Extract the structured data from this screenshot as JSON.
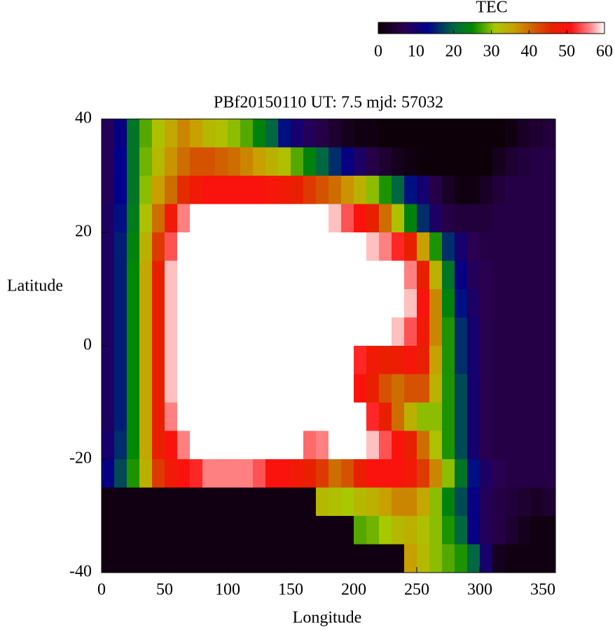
{
  "chart_data": {
    "type": "heatmap",
    "title": "PBf20150110  UT: 7.5  mjd: 57032",
    "xlabel": "Longitude",
    "ylabel": "Latitude",
    "colorbar_label": "TEC",
    "xlim": [
      0,
      360
    ],
    "ylim": [
      -40,
      40
    ],
    "xticks": [
      0,
      50,
      100,
      150,
      200,
      250,
      300,
      350
    ],
    "yticks": [
      -40,
      -20,
      0,
      20,
      40
    ],
    "clim": [
      0,
      60
    ],
    "cticks": [
      0,
      10,
      20,
      30,
      40,
      50,
      60
    ],
    "colormap": [
      {
        "value": 0,
        "color": "#0d0008"
      },
      {
        "value": 7,
        "color": "#2a0050"
      },
      {
        "value": 13,
        "color": "#00008c"
      },
      {
        "value": 20,
        "color": "#006840"
      },
      {
        "value": 25,
        "color": "#008800"
      },
      {
        "value": 31,
        "color": "#a8c800"
      },
      {
        "value": 36,
        "color": "#c8a000"
      },
      {
        "value": 41,
        "color": "#d06000"
      },
      {
        "value": 46,
        "color": "#e82000"
      },
      {
        "value": 51,
        "color": "#ff1010"
      },
      {
        "value": 56,
        "color": "#ff8080"
      },
      {
        "value": 60,
        "color": "#ffffff"
      }
    ],
    "x": [
      5,
      15,
      25,
      35,
      45,
      55,
      65,
      75,
      85,
      95,
      105,
      115,
      125,
      135,
      145,
      155,
      165,
      175,
      185,
      195,
      205,
      215,
      225,
      235,
      245,
      255,
      265,
      275,
      285,
      295,
      305,
      315,
      325,
      335,
      345,
      355
    ],
    "y": [
      37.5,
      32.5,
      27.5,
      22.5,
      17.5,
      12.5,
      7.5,
      2.5,
      -2.5,
      -7.5,
      -12.5,
      -17.5,
      -22.5,
      -27.5,
      -32.5,
      -37.5
    ],
    "z": [
      [
        8,
        12,
        22,
        28,
        32,
        35,
        38,
        36,
        33,
        32,
        30,
        28,
        24,
        20,
        14,
        10,
        8,
        6,
        4,
        2,
        1,
        1,
        0,
        0,
        0,
        0,
        0,
        0,
        0,
        0,
        0,
        0,
        1,
        3,
        4,
        5
      ],
      [
        8,
        13,
        22,
        29,
        33,
        37,
        40,
        42,
        42,
        41,
        40,
        38,
        36,
        34,
        32,
        28,
        24,
        20,
        16,
        12,
        9,
        6,
        4,
        2,
        1,
        0,
        0,
        0,
        0,
        0,
        0,
        2,
        4,
        5,
        6,
        6
      ],
      [
        8,
        13,
        22,
        30,
        36,
        40,
        45,
        48,
        50,
        50,
        50,
        50,
        50,
        49,
        48,
        46,
        44,
        42,
        40,
        37,
        34,
        30,
        26,
        20,
        14,
        10,
        6,
        3,
        1,
        1,
        3,
        5,
        6,
        6,
        6,
        6
      ],
      [
        9,
        14,
        23,
        32,
        40,
        48,
        56,
        60,
        60,
        60,
        60,
        60,
        60,
        60,
        60,
        60,
        60,
        60,
        58,
        54,
        50,
        46,
        40,
        32,
        24,
        16,
        9,
        6,
        5,
        5,
        5,
        6,
        6,
        6,
        6,
        6
      ],
      [
        9,
        15,
        24,
        34,
        44,
        54,
        60,
        60,
        60,
        60,
        60,
        60,
        60,
        60,
        60,
        60,
        60,
        60,
        60,
        60,
        60,
        58,
        56,
        52,
        46,
        36,
        26,
        16,
        10,
        7,
        6,
        6,
        6,
        6,
        6,
        6
      ],
      [
        9,
        15,
        25,
        35,
        46,
        58,
        60,
        60,
        60,
        60,
        60,
        60,
        60,
        60,
        60,
        60,
        60,
        60,
        60,
        60,
        60,
        60,
        60,
        60,
        56,
        46,
        34,
        22,
        12,
        8,
        7,
        6,
        6,
        6,
        6,
        6
      ],
      [
        9,
        15,
        25,
        35,
        46,
        58,
        60,
        60,
        60,
        60,
        60,
        60,
        60,
        60,
        60,
        60,
        60,
        60,
        60,
        60,
        60,
        60,
        60,
        60,
        58,
        50,
        38,
        24,
        14,
        9,
        7,
        6,
        6,
        6,
        6,
        6
      ],
      [
        9,
        15,
        25,
        35,
        46,
        58,
        60,
        60,
        60,
        60,
        60,
        60,
        60,
        60,
        60,
        60,
        60,
        60,
        60,
        60,
        60,
        60,
        60,
        58,
        54,
        48,
        38,
        26,
        16,
        10,
        7,
        6,
        6,
        6,
        6,
        6
      ],
      [
        9,
        15,
        25,
        35,
        46,
        58,
        60,
        60,
        60,
        60,
        60,
        60,
        60,
        60,
        60,
        60,
        60,
        60,
        60,
        60,
        52,
        48,
        46,
        47,
        49,
        46,
        36,
        26,
        16,
        10,
        7,
        6,
        6,
        6,
        6,
        6
      ],
      [
        9,
        15,
        25,
        35,
        46,
        58,
        60,
        60,
        60,
        60,
        60,
        60,
        60,
        60,
        60,
        60,
        60,
        60,
        60,
        60,
        50,
        46,
        42,
        40,
        42,
        42,
        34,
        26,
        18,
        10,
        7,
        6,
        6,
        6,
        6,
        6
      ],
      [
        9,
        15,
        25,
        35,
        46,
        56,
        60,
        60,
        60,
        60,
        60,
        60,
        60,
        60,
        60,
        60,
        60,
        60,
        60,
        60,
        60,
        52,
        46,
        40,
        34,
        30,
        30,
        26,
        18,
        10,
        7,
        6,
        6,
        6,
        6,
        6
      ],
      [
        10,
        16,
        25,
        35,
        46,
        50,
        56,
        60,
        60,
        60,
        60,
        60,
        60,
        60,
        60,
        60,
        55,
        56,
        60,
        60,
        60,
        58,
        54,
        50,
        46,
        40,
        32,
        26,
        18,
        10,
        7,
        6,
        6,
        6,
        6,
        6
      ],
      [
        12,
        18,
        26,
        34,
        44,
        48,
        50,
        52,
        56,
        56,
        56,
        56,
        54,
        50,
        50,
        48,
        46,
        44,
        40,
        42,
        46,
        50,
        50,
        50,
        48,
        44,
        38,
        30,
        22,
        14,
        9,
        7,
        6,
        6,
        6,
        6
      ],
      [
        1,
        1,
        1,
        1,
        1,
        1,
        1,
        1,
        1,
        1,
        1,
        1,
        1,
        1,
        1,
        1,
        1,
        33,
        32,
        31,
        33,
        34,
        36,
        38,
        38,
        35,
        30,
        24,
        18,
        12,
        8,
        6,
        5,
        4,
        3,
        4
      ],
      [
        1,
        1,
        1,
        1,
        1,
        1,
        1,
        1,
        1,
        1,
        1,
        1,
        1,
        1,
        1,
        1,
        1,
        1,
        1,
        1,
        28,
        29,
        31,
        33,
        34,
        32,
        30,
        26,
        20,
        12,
        8,
        6,
        4,
        2,
        1,
        1
      ],
      [
        1,
        1,
        1,
        1,
        1,
        1,
        1,
        1,
        1,
        1,
        1,
        1,
        1,
        1,
        1,
        1,
        1,
        1,
        1,
        1,
        1,
        1,
        1,
        1,
        36,
        33,
        30,
        28,
        26,
        20,
        10,
        2,
        1,
        1,
        1,
        1
      ]
    ]
  }
}
